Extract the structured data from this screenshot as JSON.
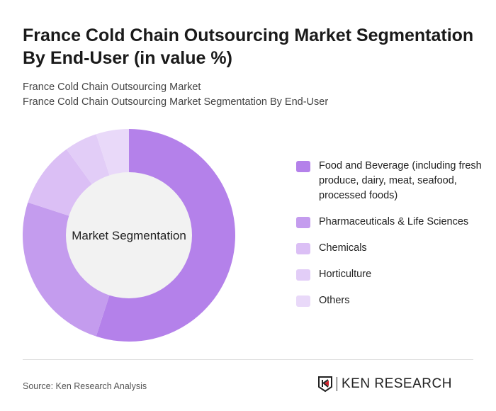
{
  "header": {
    "title": "France Cold Chain Outsourcing Market Segmentation By End-User (in value %)",
    "subtitle1": "France Cold Chain Outsourcing Market",
    "subtitle2": "France Cold Chain Outsourcing Market Segmentation By End-User"
  },
  "chart_data": {
    "type": "pie",
    "title": "France Cold Chain Outsourcing Market Segmentation By End-User (in value %)",
    "center_label": "Market Segmentation",
    "categories": [
      "Food and Beverage (including fresh produce, dairy, meat, seafood, processed foods)",
      "Pharmaceuticals & Life Sciences",
      "Chemicals",
      "Horticulture",
      "Others"
    ],
    "values": [
      55,
      25,
      10,
      5,
      5
    ],
    "colors": [
      "#b481ea",
      "#c49cee",
      "#dbbff5",
      "#e2cdf7",
      "#e9d9f9"
    ],
    "legend_position": "right"
  },
  "footer": {
    "source": "Source: Ken Research Analysis",
    "logo_text": "KEN RESEARCH"
  }
}
